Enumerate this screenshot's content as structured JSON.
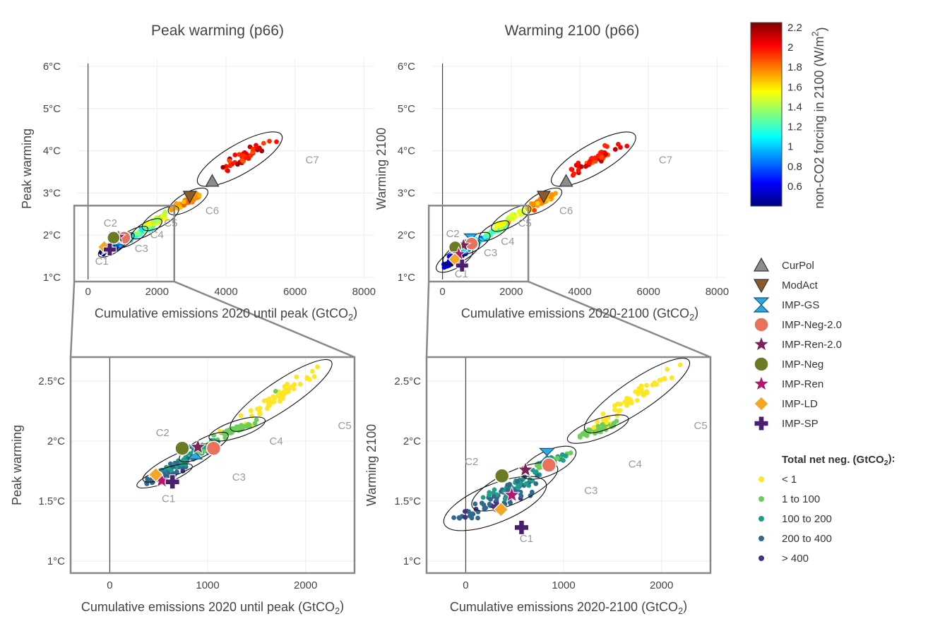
{
  "chart_data": [
    {
      "type": "scatter",
      "title": "Peak warming (p66)",
      "xlabel": "Cumulative emissions 2020 until peak (GtCO₂)",
      "ylabel": "Peak warming",
      "xlim": [
        -300,
        8300
      ],
      "ylim": [
        0.95,
        6.2
      ],
      "x_ticks": [
        0,
        2000,
        4000,
        6000,
        8000
      ],
      "y_ticks": [
        {
          "v": 1,
          "label": "1°C"
        },
        {
          "v": 2,
          "label": "2°C"
        },
        {
          "v": 3,
          "label": "3°C"
        },
        {
          "v": 4,
          "label": "4°C"
        },
        {
          "v": 5,
          "label": "5°C"
        },
        {
          "v": 6,
          "label": "6°C"
        }
      ],
      "zoom_box": {
        "x": [
          -400,
          2500
        ],
        "y": [
          0.9,
          2.7
        ]
      },
      "category_labels": [
        {
          "label": "C1",
          "x": 400,
          "y": 1.3
        },
        {
          "label": "C2",
          "x": 650,
          "y": 2.2
        },
        {
          "label": "C3",
          "x": 1550,
          "y": 1.6
        },
        {
          "label": "C4",
          "x": 2000,
          "y": 1.93
        },
        {
          "label": "C5",
          "x": 2400,
          "y": 2.2
        },
        {
          "label": "C6",
          "x": 3600,
          "y": 2.5
        },
        {
          "label": "C7",
          "x": 6500,
          "y": 3.7
        }
      ],
      "ellipses": [
        {
          "category": "C1",
          "cx": 700,
          "cy": 1.7,
          "rx": 450,
          "ry": 0.14,
          "angle_deg": 30
        },
        {
          "category": "C2",
          "cx": 900,
          "cy": 1.82,
          "rx": 500,
          "ry": 0.14,
          "angle_deg": 30
        },
        {
          "category": "C3",
          "cx": 1250,
          "cy": 1.95,
          "rx": 550,
          "ry": 0.15,
          "angle_deg": 30
        },
        {
          "category": "C4",
          "cx": 1700,
          "cy": 2.15,
          "rx": 500,
          "ry": 0.15,
          "angle_deg": 30
        },
        {
          "category": "C5",
          "cx": 2100,
          "cy": 2.4,
          "rx": 600,
          "ry": 0.18,
          "angle_deg": 30
        },
        {
          "category": "C6",
          "cx": 2900,
          "cy": 2.8,
          "rx": 650,
          "ry": 0.2,
          "angle_deg": 30
        },
        {
          "category": "C7",
          "cx": 4400,
          "cy": 3.8,
          "rx": 1400,
          "ry": 0.35,
          "angle_deg": 30
        }
      ],
      "markers": [
        {
          "name": "CurPol",
          "x": 3600,
          "y": 3.28
        },
        {
          "name": "ModAct",
          "x": 2950,
          "y": 2.92
        },
        {
          "name": "IMP-GS",
          "x": 820,
          "y": 1.92
        },
        {
          "name": "IMP-Neg-2.0",
          "x": 1050,
          "y": 1.94
        },
        {
          "name": "IMP-Ren-2.0",
          "x": 880,
          "y": 1.96
        },
        {
          "name": "IMP-Neg",
          "x": 740,
          "y": 1.94
        },
        {
          "name": "IMP-Ren",
          "x": 520,
          "y": 1.67
        },
        {
          "name": "IMP-LD",
          "x": 470,
          "y": 1.72
        },
        {
          "name": "IMP-SP",
          "x": 630,
          "y": 1.66
        }
      ]
    },
    {
      "type": "scatter",
      "title": "Warming 2100 (p66)",
      "xlabel": "Cumulative emissions 2020-2100 (GtCO₂)",
      "ylabel": "Warming 2100",
      "xlim": [
        -300,
        8300
      ],
      "ylim": [
        0.95,
        6.2
      ],
      "x_ticks": [
        0,
        2000,
        4000,
        6000,
        8000
      ],
      "y_ticks": [
        {
          "v": 1,
          "label": "1°C"
        },
        {
          "v": 2,
          "label": "2°C"
        },
        {
          "v": 3,
          "label": "3°C"
        },
        {
          "v": 4,
          "label": "4°C"
        },
        {
          "v": 5,
          "label": "5°C"
        },
        {
          "v": 6,
          "label": "6°C"
        }
      ],
      "zoom_box": {
        "x": [
          -400,
          2500
        ],
        "y": [
          0.9,
          2.7
        ]
      },
      "category_labels": [
        {
          "label": "C1",
          "x": 550,
          "y": 1.0
        },
        {
          "label": "C2",
          "x": 300,
          "y": 1.95
        },
        {
          "label": "C3",
          "x": 1400,
          "y": 1.5
        },
        {
          "label": "C4",
          "x": 1900,
          "y": 1.77
        },
        {
          "label": "C5",
          "x": 2400,
          "y": 2.2
        },
        {
          "label": "C6",
          "x": 3600,
          "y": 2.5
        },
        {
          "label": "C7",
          "x": 6500,
          "y": 3.7
        }
      ],
      "ellipses": [
        {
          "category": "C1",
          "cx": 350,
          "cy": 1.42,
          "rx": 600,
          "ry": 0.2,
          "angle_deg": 30
        },
        {
          "category": "C2",
          "cx": 550,
          "cy": 1.6,
          "rx": 600,
          "ry": 0.2,
          "angle_deg": 30
        },
        {
          "category": "C3",
          "cx": 900,
          "cy": 1.8,
          "rx": 550,
          "ry": 0.17,
          "angle_deg": 30
        },
        {
          "category": "C4",
          "cx": 1500,
          "cy": 2.1,
          "rx": 500,
          "ry": 0.15,
          "angle_deg": 30
        },
        {
          "category": "C5",
          "cx": 2000,
          "cy": 2.4,
          "rx": 650,
          "ry": 0.18,
          "angle_deg": 30
        },
        {
          "category": "C6",
          "cx": 2900,
          "cy": 2.8,
          "rx": 650,
          "ry": 0.2,
          "angle_deg": 30
        },
        {
          "category": "C7",
          "cx": 4400,
          "cy": 3.8,
          "rx": 1400,
          "ry": 0.35,
          "angle_deg": 30
        }
      ],
      "markers": [
        {
          "name": "CurPol",
          "x": 3600,
          "y": 3.28
        },
        {
          "name": "ModAct",
          "x": 2950,
          "y": 2.92
        },
        {
          "name": "IMP-GS",
          "x": 820,
          "y": 1.88
        },
        {
          "name": "IMP-Neg-2.0",
          "x": 850,
          "y": 1.8
        },
        {
          "name": "IMP-Ren-2.0",
          "x": 610,
          "y": 1.76
        },
        {
          "name": "IMP-Neg",
          "x": 370,
          "y": 1.71
        },
        {
          "name": "IMP-Ren",
          "x": 470,
          "y": 1.55
        },
        {
          "name": "IMP-LD",
          "x": 360,
          "y": 1.43
        },
        {
          "name": "IMP-SP",
          "x": 570,
          "y": 1.28
        }
      ]
    },
    {
      "type": "scatter",
      "title": "",
      "xlabel": "Cumulative emissions 2020 until peak (GtCO₂)",
      "ylabel": "Peak warming",
      "xlim": [
        -400,
        2500
      ],
      "ylim": [
        0.9,
        2.7
      ],
      "x_ticks": [
        0,
        1000,
        2000
      ],
      "y_ticks": [
        {
          "v": 1,
          "label": "1°C"
        },
        {
          "v": 1.5,
          "label": "1.5°C"
        },
        {
          "v": 2,
          "label": "2°C"
        },
        {
          "v": 2.5,
          "label": "2.5°C"
        }
      ],
      "category_labels": [
        {
          "label": "C1",
          "x": 600,
          "y": 1.49
        },
        {
          "label": "C2",
          "x": 540,
          "y": 2.04
        },
        {
          "label": "C3",
          "x": 1320,
          "y": 1.67
        },
        {
          "label": "C4",
          "x": 1700,
          "y": 1.97
        },
        {
          "label": "C5",
          "x": 2400,
          "y": 2.1
        }
      ],
      "ellipses": [
        {
          "category": "C1",
          "cx": 560,
          "cy": 1.71,
          "rx": 300,
          "ry": 0.06,
          "angle_deg": 20
        },
        {
          "category": "C2",
          "cx": 720,
          "cy": 1.82,
          "rx": 420,
          "ry": 0.08,
          "angle_deg": 25
        },
        {
          "category": "C3",
          "cx": 960,
          "cy": 1.95,
          "rx": 280,
          "ry": 0.07,
          "angle_deg": 28
        },
        {
          "category": "C4",
          "cx": 1300,
          "cy": 2.1,
          "rx": 300,
          "ry": 0.07,
          "angle_deg": 18
        },
        {
          "category": "C5",
          "cx": 1750,
          "cy": 2.38,
          "rx": 620,
          "ry": 0.12,
          "angle_deg": 34
        }
      ],
      "markers": [
        {
          "name": "IMP-GS",
          "x": 870,
          "y": 1.91
        },
        {
          "name": "IMP-Neg-2.0",
          "x": 1060,
          "y": 1.94
        },
        {
          "name": "IMP-Ren-2.0",
          "x": 900,
          "y": 1.95
        },
        {
          "name": "IMP-Neg",
          "x": 740,
          "y": 1.94
        },
        {
          "name": "IMP-Ren",
          "x": 530,
          "y": 1.67
        },
        {
          "name": "IMP-LD",
          "x": 470,
          "y": 1.72
        },
        {
          "name": "IMP-SP",
          "x": 640,
          "y": 1.66
        }
      ]
    },
    {
      "type": "scatter",
      "title": "",
      "xlabel": "Cumulative emissions 2020-2100 (GtCO₂)",
      "ylabel": "Warming 2100",
      "xlim": [
        -400,
        2500
      ],
      "ylim": [
        0.9,
        2.7
      ],
      "x_ticks": [
        0,
        1000,
        2000
      ],
      "y_ticks": [
        {
          "v": 1,
          "label": "1°C"
        },
        {
          "v": 1.5,
          "label": "1.5°C"
        },
        {
          "v": 2,
          "label": "2°C"
        },
        {
          "v": 2.5,
          "label": "2.5°C"
        }
      ],
      "category_labels": [
        {
          "label": "C1",
          "x": 620,
          "y": 1.16
        },
        {
          "label": "C2",
          "x": 60,
          "y": 1.8
        },
        {
          "label": "C3",
          "x": 1280,
          "y": 1.56
        },
        {
          "label": "C4",
          "x": 1730,
          "y": 1.78
        },
        {
          "label": "C5",
          "x": 2400,
          "y": 2.1
        }
      ],
      "ellipses": [
        {
          "category": "C1",
          "cx": 300,
          "cy": 1.48,
          "rx": 560,
          "ry": 0.16,
          "angle_deg": 22
        },
        {
          "category": "C2",
          "cx": 500,
          "cy": 1.62,
          "rx": 480,
          "ry": 0.13,
          "angle_deg": 25
        },
        {
          "category": "C3",
          "cx": 850,
          "cy": 1.82,
          "rx": 300,
          "ry": 0.1,
          "angle_deg": 25
        },
        {
          "category": "C4",
          "cx": 1350,
          "cy": 2.1,
          "rx": 330,
          "ry": 0.08,
          "angle_deg": 20
        },
        {
          "category": "C5",
          "cx": 1750,
          "cy": 2.38,
          "rx": 640,
          "ry": 0.13,
          "angle_deg": 34
        }
      ],
      "markers": [
        {
          "name": "IMP-GS",
          "x": 830,
          "y": 1.88
        },
        {
          "name": "IMP-Neg-2.0",
          "x": 850,
          "y": 1.8
        },
        {
          "name": "IMP-Ren-2.0",
          "x": 610,
          "y": 1.76
        },
        {
          "name": "IMP-Neg",
          "x": 370,
          "y": 1.71
        },
        {
          "name": "IMP-Ren",
          "x": 470,
          "y": 1.55
        },
        {
          "name": "IMP-LD",
          "x": 360,
          "y": 1.43
        },
        {
          "name": "IMP-SP",
          "x": 570,
          "y": 1.28
        }
      ]
    }
  ],
  "colorbar": {
    "title": "non-CO2 forcing in 2100 (W/m²)",
    "range": [
      0.4,
      2.25
    ],
    "tick_values": [
      0.6,
      0.8,
      1,
      1.2,
      1.4,
      1.6,
      1.8,
      2,
      2.2
    ],
    "tick_labels": [
      "0.6",
      "0.8",
      "1",
      "1.2",
      "1.4",
      "1.6",
      "1.8",
      "2",
      "2.2"
    ],
    "colors": [
      "#00007f",
      "#0000ff",
      "#007fff",
      "#00ffff",
      "#7fff7f",
      "#ffff00",
      "#ff7f00",
      "#ff0000",
      "#7f0000"
    ]
  },
  "markers_legend": [
    {
      "name": "CurPol",
      "label": "CurPol",
      "shape": "triangle-up",
      "color": "#8c8c8c"
    },
    {
      "name": "ModAct",
      "label": "ModAct",
      "shape": "triangle-down",
      "color": "#8b5a2b"
    },
    {
      "name": "IMP-GS",
      "label": "IMP-GS",
      "shape": "hourglass",
      "color": "#29abe2"
    },
    {
      "name": "IMP-Neg-2.0",
      "label": "IMP-Neg-2.0",
      "shape": "circle",
      "color": "#e9725c"
    },
    {
      "name": "IMP-Ren-2.0",
      "label": "IMP-Ren-2.0",
      "shape": "star",
      "color": "#7b2257"
    },
    {
      "name": "IMP-Neg",
      "label": "IMP-Neg",
      "shape": "circle",
      "color": "#6b7a25"
    },
    {
      "name": "IMP-Ren",
      "label": "IMP-Ren",
      "shape": "star",
      "color": "#b5166e"
    },
    {
      "name": "IMP-LD",
      "label": "IMP-LD",
      "shape": "diamond",
      "color": "#f5a623"
    },
    {
      "name": "IMP-SP",
      "label": "IMP-SP",
      "shape": "cross",
      "color": "#4b1f6f"
    }
  ],
  "netneg_legend": {
    "title": "Total net neg. (GtCO₂):",
    "items": [
      {
        "label": "< 1",
        "color": "#fde725"
      },
      {
        "label": "1 to 100",
        "color": "#6cce59"
      },
      {
        "label": "100 to 200",
        "color": "#1f9e89"
      },
      {
        "label": "200 to 400",
        "color": "#31688e"
      },
      {
        "label": "> 400",
        "color": "#46327e"
      }
    ]
  }
}
